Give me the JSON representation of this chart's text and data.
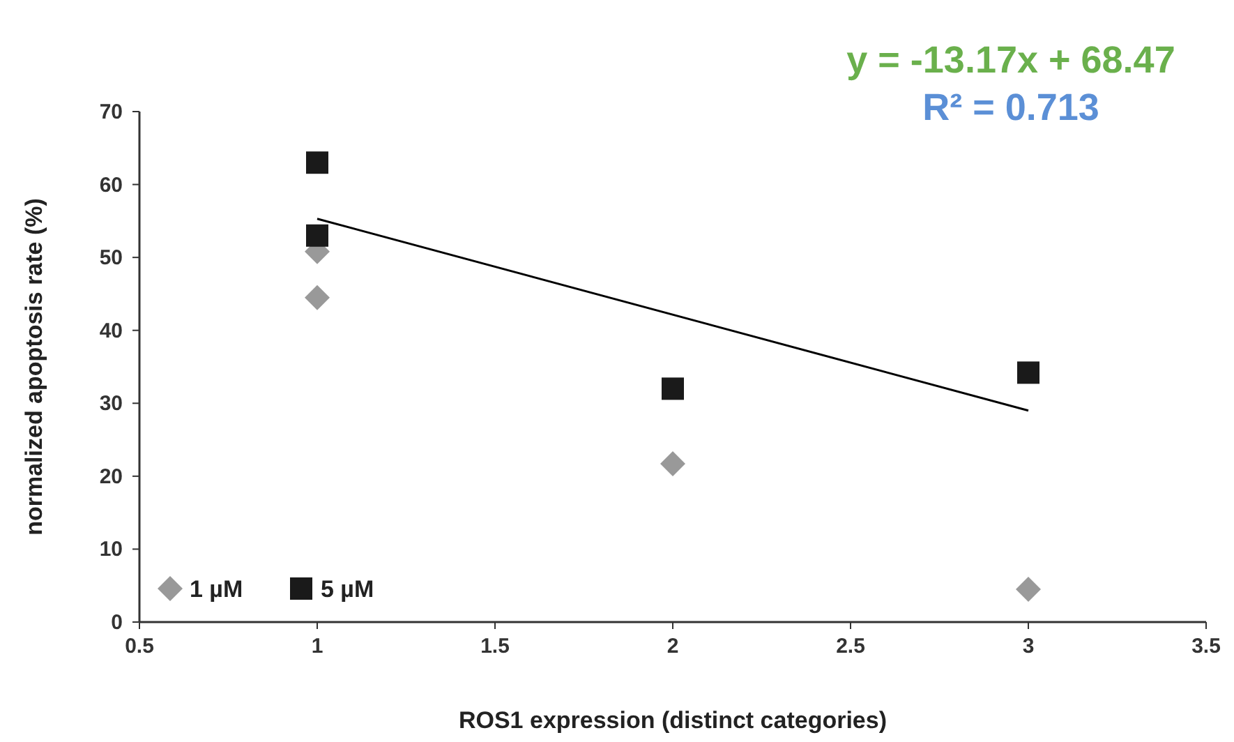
{
  "chart_data": {
    "type": "scatter",
    "xlabel": "ROS1 expression (distinct categories)",
    "ylabel": "normalized apoptosis rate (%)",
    "xlim": [
      0.5,
      3.5
    ],
    "xticks": [
      0.5,
      1,
      1.5,
      2,
      2.5,
      3,
      3.5
    ],
    "ylim": [
      0,
      70
    ],
    "yticks": [
      0,
      10,
      20,
      30,
      40,
      50,
      60,
      70
    ],
    "grid": false,
    "legend": "bottom left",
    "annotations": [
      "y = -13.17x + 68.47",
      "R² = 0.713"
    ],
    "series": [
      {
        "name": "1 µM",
        "color": "#999999",
        "marker": "diamond",
        "x": [
          1,
          1,
          2,
          3
        ],
        "values": [
          50.8,
          44.5,
          21.7,
          4.5
        ]
      },
      {
        "name": "5 µM",
        "color": "#1a1a1a",
        "marker": "square",
        "x": [
          1,
          1,
          2,
          3
        ],
        "values": [
          63,
          53,
          32,
          34.2
        ]
      },
      {
        "type": "line",
        "color": "#000000",
        "marker": "none",
        "x": [
          1,
          3
        ],
        "values": [
          55.3,
          29
        ]
      }
    ]
  }
}
